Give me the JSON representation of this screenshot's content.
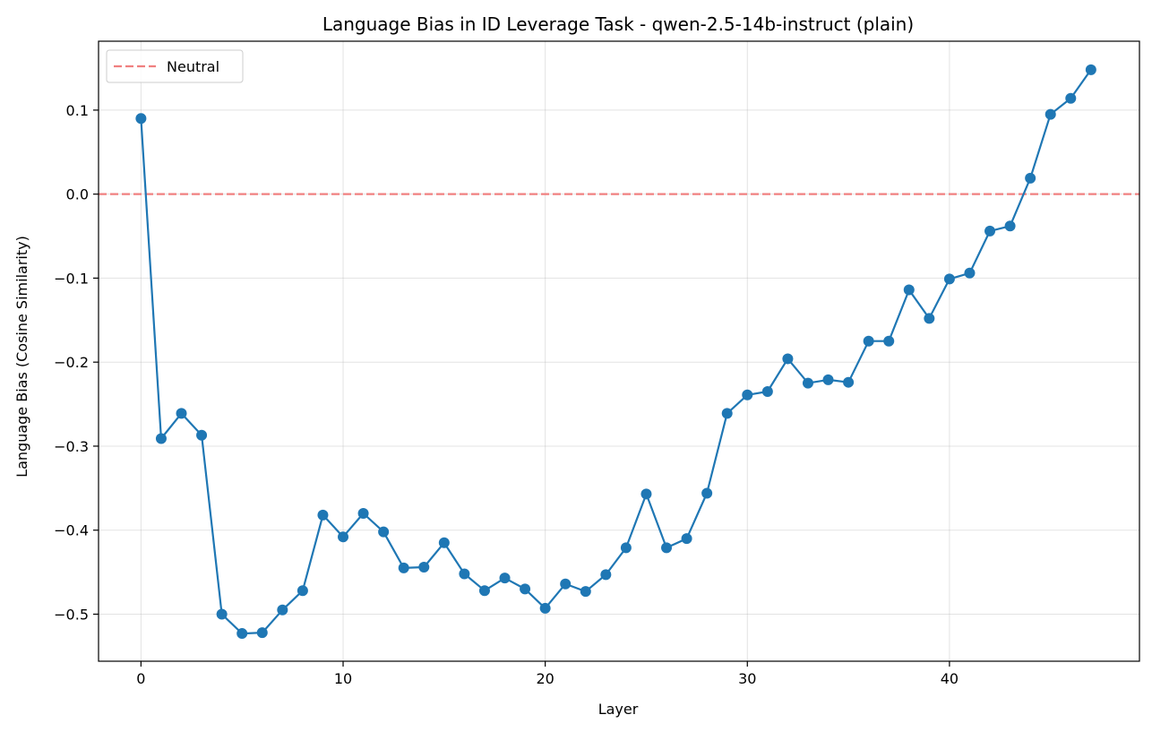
{
  "chart_data": {
    "type": "line",
    "title": "Language Bias in ID Leverage Task - qwen-2.5-14b-instruct (plain)",
    "xlabel": "Layer",
    "ylabel": "Language Bias (Cosine Similarity)",
    "xlim": [
      -2.1,
      49.4
    ],
    "ylim": [
      -0.556,
      0.182
    ],
    "xticks": [
      0,
      10,
      20,
      30,
      40
    ],
    "yticks": [
      0.1,
      0.0,
      -0.1,
      -0.2,
      -0.3,
      -0.4,
      -0.5
    ],
    "ytick_labels": [
      "0.1",
      "0.0",
      "−0.1",
      "−0.2",
      "−0.3",
      "−0.4",
      "−0.5"
    ],
    "grid": true,
    "legend_position": "top-left",
    "series": [
      {
        "color": "#1f77b4",
        "x": [
          0,
          1,
          2,
          3,
          4,
          5,
          6,
          7,
          8,
          9,
          10,
          11,
          12,
          13,
          14,
          15,
          16,
          17,
          18,
          19,
          20,
          21,
          22,
          23,
          24,
          25,
          26,
          27,
          28,
          29,
          30,
          31,
          32,
          33,
          34,
          35,
          36,
          37,
          38,
          39,
          40,
          41,
          42,
          43,
          44,
          45,
          46,
          47
        ],
        "y": [
          0.09,
          -0.291,
          -0.261,
          -0.287,
          -0.5,
          -0.523,
          -0.522,
          -0.495,
          -0.472,
          -0.382,
          -0.408,
          -0.38,
          -0.402,
          -0.445,
          -0.444,
          -0.415,
          -0.452,
          -0.472,
          -0.457,
          -0.47,
          -0.493,
          -0.464,
          -0.473,
          -0.453,
          -0.421,
          -0.357,
          -0.421,
          -0.41,
          -0.356,
          -0.261,
          -0.239,
          -0.235,
          -0.196,
          -0.225,
          -0.221,
          -0.224,
          -0.175,
          -0.175,
          -0.114,
          -0.148,
          -0.101,
          -0.094,
          -0.044,
          -0.038,
          0.019,
          0.095,
          0.114,
          0.148
        ]
      }
    ],
    "reference_line": {
      "name": "Neutral",
      "y": 0.0,
      "color": "#f08080",
      "style": "dashed"
    }
  }
}
